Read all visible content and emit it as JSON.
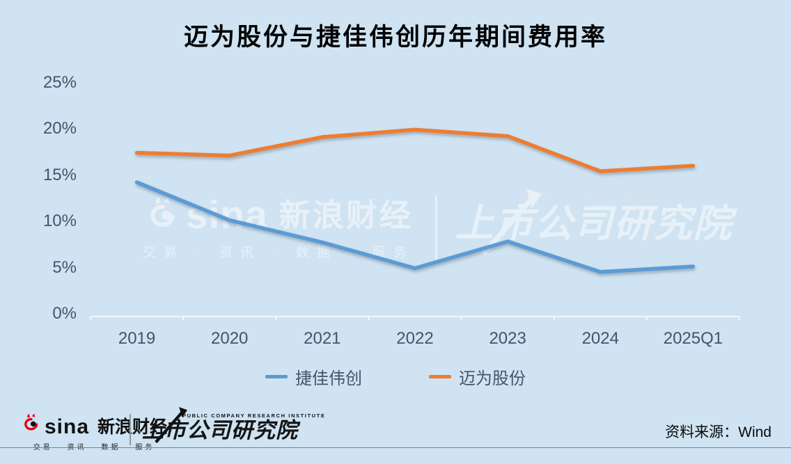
{
  "title": "迈为股份与捷佳伟创历年期间费用率",
  "source_note": "资料来源：Wind",
  "colors": {
    "background": "#cfe3f2",
    "axis_text": "#44546a",
    "series_blue": "#5b9bd5",
    "series_orange": "#ed7d31",
    "sina_red": "#e2001a"
  },
  "legend": [
    {
      "label": "捷佳伟创",
      "color": "#5b9bd5"
    },
    {
      "label": "迈为股份",
      "color": "#ed7d31"
    }
  ],
  "watermark": {
    "sina_word": "sina",
    "sina_cn": "新浪财经",
    "tagline": "交易 · 资讯 · 数据 · 服务",
    "institute_en": "PUBLIC COMPANY RESEARCH INSTITUTE",
    "institute_cn": "上市公司研究院"
  },
  "footer": {
    "sina_word": "sina",
    "sina_cn": "新浪财经",
    "tagline": "交易 · 资讯 · 数据 · 服务",
    "institute_en": "PUBLIC COMPANY RESEARCH INSTITUTE",
    "institute_cn": "上市公司研究院"
  },
  "chart_data": {
    "type": "line",
    "title": "迈为股份与捷佳伟创历年期间费用率",
    "categories": [
      "2019",
      "2020",
      "2021",
      "2022",
      "2023",
      "2024",
      "2025Q1"
    ],
    "series": [
      {
        "name": "捷佳伟创",
        "color": "#5b9bd5",
        "values": [
          14.3,
          10.2,
          7.8,
          5.0,
          7.9,
          4.6,
          5.2
        ]
      },
      {
        "name": "迈为股份",
        "color": "#ed7d31",
        "values": [
          17.5,
          17.2,
          19.2,
          20.0,
          19.3,
          15.5,
          16.1
        ]
      }
    ],
    "xlabel": "",
    "ylabel": "",
    "ylim": [
      0,
      25
    ],
    "ytick_step": 5,
    "ytick_labels": [
      "0%",
      "5%",
      "10%",
      "15%",
      "20%",
      "25%"
    ],
    "grid": false,
    "legend_position": "bottom",
    "unit": "percent"
  }
}
